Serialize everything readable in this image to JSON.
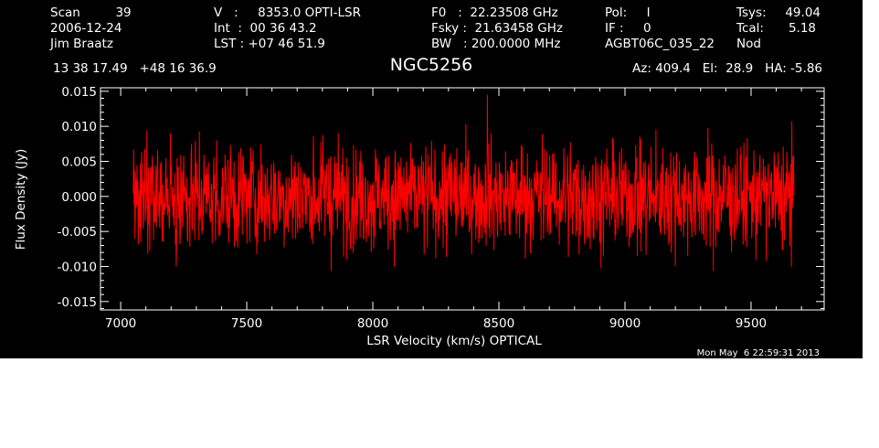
{
  "header": {
    "col1": [
      "Scan         39",
      "2006-12-24",
      "Jim Braatz"
    ],
    "col2": [
      "V   :     8353.0 OPTI-LSR",
      "Int  :  00 36 43.2",
      "LST : +07 46 51.9"
    ],
    "col3": [
      "F0   :  22.23508 GHz",
      "Fsky :  21.63458 GHz",
      "BW   : 200.0000 MHz"
    ],
    "col4": [
      "Pol:     I",
      "IF :     0",
      "AGBT06C_035_22"
    ],
    "col5": [
      "Tsys:",
      "Tcal:",
      "Nod"
    ],
    "col5_values": [
      "49.04",
      "5.18"
    ],
    "coords": "13 38 17.49   +48 16 36.9",
    "source": "NGC5256",
    "pointing": "Az: 409.4   El:  28.9   HA: -5.86"
  },
  "timestamp": "Mon May  6 22:59:31 2013",
  "colors": {
    "background": "#000000",
    "foreground": "#ffffff",
    "series": "#ff0000"
  },
  "chart_data": {
    "type": "line",
    "title": "NGC5256",
    "xlabel": "LSR Velocity (km/s) OPTICAL",
    "ylabel": "Flux Density (Jy)",
    "xlim": [
      6920,
      9790
    ],
    "ylim": [
      -0.0162,
      0.0155
    ],
    "xticks": [
      7000,
      7500,
      8000,
      8500,
      9000,
      9500
    ],
    "xtick_labels": [
      "7000",
      "7500",
      "8000",
      "8500",
      "9000",
      "9500"
    ],
    "yticks": [
      -0.015,
      -0.01,
      -0.005,
      0.0,
      0.005,
      0.01,
      0.015
    ],
    "ytick_labels": [
      "-0.015",
      "-0.010",
      "-0.005",
      "0.000",
      "0.005",
      "0.010",
      "0.015"
    ],
    "grid": false,
    "series": [
      {
        "color": "#ff0000",
        "x_range": [
          7050,
          9670
        ],
        "y_min": -0.0112,
        "y_max": 0.0145,
        "y_mean": 0.0,
        "noise_rms": 0.0038,
        "peak": {
          "x": 8455,
          "y": 0.0145
        }
      }
    ]
  }
}
